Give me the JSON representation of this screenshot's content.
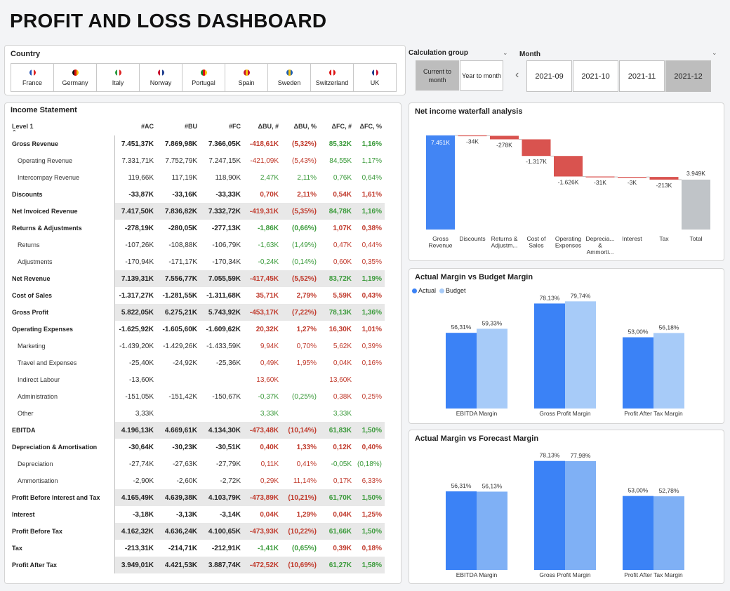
{
  "title": "PROFIT AND LOSS DASHBOARD",
  "country": {
    "label": "Country",
    "items": [
      {
        "name": "France",
        "flag": [
          "#1f4fb5",
          "#ffffff",
          "#d22"
        ]
      },
      {
        "name": "Germany",
        "flag": [
          "#111111",
          "#d11",
          "#f4c20d"
        ]
      },
      {
        "name": "Italy",
        "flag": [
          "#2a9a3f",
          "#ffffff",
          "#d22"
        ]
      },
      {
        "name": "Norway",
        "flag": [
          "#c8102e",
          "#ffffff",
          "#1b3a8c"
        ]
      },
      {
        "name": "Portugal",
        "flag": [
          "#1a8a2a",
          "#d11",
          "#f4c20d"
        ]
      },
      {
        "name": "Spain",
        "flag": [
          "#c8102e",
          "#f4c20d",
          "#c8102e"
        ]
      },
      {
        "name": "Sweden",
        "flag": [
          "#1f5fb5",
          "#f4c20d",
          "#1f5fb5"
        ]
      },
      {
        "name": "Switzerland",
        "flag": [
          "#d11",
          "#ffffff",
          "#d11"
        ]
      },
      {
        "name": "UK",
        "flag": [
          "#1b3a8c",
          "#ffffff",
          "#c8102e"
        ]
      }
    ]
  },
  "calc_group": {
    "label": "Calculation group",
    "options": [
      {
        "label": "Current to month",
        "selected": true
      },
      {
        "label": "Year to month",
        "selected": false
      }
    ]
  },
  "month": {
    "label": "Month",
    "options": [
      {
        "label": "2021-09",
        "selected": false
      },
      {
        "label": "2021-10",
        "selected": false
      },
      {
        "label": "2021-11",
        "selected": false
      },
      {
        "label": "2021-12",
        "selected": true
      }
    ]
  },
  "income": {
    "title": "Income Statement",
    "headers": [
      "Level 1",
      "#AC",
      "#BU",
      "#FC",
      "ΔBU, #",
      "ΔBU, %",
      "ΔFC, #",
      "ΔFC, %"
    ],
    "rows": [
      {
        "label": "Gross Revenue",
        "bold": true,
        "shade": false,
        "ac": "7.451,37K",
        "bu": "7.869,98K",
        "fc": "7.366,05K",
        "dbu": "-418,61K",
        "dbup": "(5,32%)",
        "dfc": "85,32K",
        "dfcp": "1,16%",
        "c": [
          "r",
          "r",
          "g",
          "g"
        ]
      },
      {
        "label": "Operating Revenue",
        "bold": false,
        "shade": false,
        "ac": "7.331,71K",
        "bu": "7.752,79K",
        "fc": "7.247,15K",
        "dbu": "-421,09K",
        "dbup": "(5,43%)",
        "dfc": "84,55K",
        "dfcp": "1,17%",
        "c": [
          "r",
          "r",
          "g",
          "g"
        ]
      },
      {
        "label": "Intercompay Revenue",
        "bold": false,
        "shade": false,
        "ac": "119,66K",
        "bu": "117,19K",
        "fc": "118,90K",
        "dbu": "2,47K",
        "dbup": "2,11%",
        "dfc": "0,76K",
        "dfcp": "0,64%",
        "c": [
          "g",
          "g",
          "g",
          "g"
        ]
      },
      {
        "label": "Discounts",
        "bold": true,
        "shade": false,
        "ac": "-33,87K",
        "bu": "-33,16K",
        "fc": "-33,33K",
        "dbu": "0,70K",
        "dbup": "2,11%",
        "dfc": "0,54K",
        "dfcp": "1,61%",
        "c": [
          "r",
          "r",
          "r",
          "r"
        ]
      },
      {
        "label": "Net Invoiced Revenue",
        "bold": true,
        "shade": true,
        "ac": "7.417,50K",
        "bu": "7.836,82K",
        "fc": "7.332,72K",
        "dbu": "-419,31K",
        "dbup": "(5,35%)",
        "dfc": "84,78K",
        "dfcp": "1,16%",
        "c": [
          "r",
          "r",
          "g",
          "g"
        ]
      },
      {
        "label": "Returns & Adjustments",
        "bold": true,
        "shade": false,
        "ac": "-278,19K",
        "bu": "-280,05K",
        "fc": "-277,13K",
        "dbu": "-1,86K",
        "dbup": "(0,66%)",
        "dfc": "1,07K",
        "dfcp": "0,38%",
        "c": [
          "g",
          "g",
          "r",
          "r"
        ]
      },
      {
        "label": "Returns",
        "bold": false,
        "shade": false,
        "ac": "-107,26K",
        "bu": "-108,88K",
        "fc": "-106,79K",
        "dbu": "-1,63K",
        "dbup": "(1,49%)",
        "dfc": "0,47K",
        "dfcp": "0,44%",
        "c": [
          "g",
          "g",
          "r",
          "r"
        ]
      },
      {
        "label": "Adjustments",
        "bold": false,
        "shade": false,
        "ac": "-170,94K",
        "bu": "-171,17K",
        "fc": "-170,34K",
        "dbu": "-0,24K",
        "dbup": "(0,14%)",
        "dfc": "0,60K",
        "dfcp": "0,35%",
        "c": [
          "g",
          "g",
          "r",
          "r"
        ]
      },
      {
        "label": "Net Revenue",
        "bold": true,
        "shade": true,
        "ac": "7.139,31K",
        "bu": "7.556,77K",
        "fc": "7.055,59K",
        "dbu": "-417,45K",
        "dbup": "(5,52%)",
        "dfc": "83,72K",
        "dfcp": "1,19%",
        "c": [
          "r",
          "r",
          "g",
          "g"
        ]
      },
      {
        "label": "Cost of Sales",
        "bold": true,
        "shade": false,
        "ac": "-1.317,27K",
        "bu": "-1.281,55K",
        "fc": "-1.311,68K",
        "dbu": "35,71K",
        "dbup": "2,79%",
        "dfc": "5,59K",
        "dfcp": "0,43%",
        "c": [
          "r",
          "r",
          "r",
          "r"
        ]
      },
      {
        "label": "Gross Profit",
        "bold": true,
        "shade": true,
        "ac": "5.822,05K",
        "bu": "6.275,21K",
        "fc": "5.743,92K",
        "dbu": "-453,17K",
        "dbup": "(7,22%)",
        "dfc": "78,13K",
        "dfcp": "1,36%",
        "c": [
          "r",
          "r",
          "g",
          "g"
        ]
      },
      {
        "label": "Operating Expenses",
        "bold": true,
        "shade": false,
        "ac": "-1.625,92K",
        "bu": "-1.605,60K",
        "fc": "-1.609,62K",
        "dbu": "20,32K",
        "dbup": "1,27%",
        "dfc": "16,30K",
        "dfcp": "1,01%",
        "c": [
          "r",
          "r",
          "r",
          "r"
        ]
      },
      {
        "label": "Marketing",
        "bold": false,
        "shade": false,
        "ac": "-1.439,20K",
        "bu": "-1.429,26K",
        "fc": "-1.433,59K",
        "dbu": "9,94K",
        "dbup": "0,70%",
        "dfc": "5,62K",
        "dfcp": "0,39%",
        "c": [
          "r",
          "r",
          "r",
          "r"
        ]
      },
      {
        "label": "Travel and Expenses",
        "bold": false,
        "shade": false,
        "ac": "-25,40K",
        "bu": "-24,92K",
        "fc": "-25,36K",
        "dbu": "0,49K",
        "dbup": "1,95%",
        "dfc": "0,04K",
        "dfcp": "0,16%",
        "c": [
          "r",
          "r",
          "r",
          "r"
        ]
      },
      {
        "label": "Indirect Labour",
        "bold": false,
        "shade": false,
        "ac": "-13,60K",
        "bu": "",
        "fc": "",
        "dbu": "13,60K",
        "dbup": "",
        "dfc": "13,60K",
        "dfcp": "",
        "c": [
          "r",
          "r",
          "r",
          "r"
        ]
      },
      {
        "label": "Administration",
        "bold": false,
        "shade": false,
        "ac": "-151,05K",
        "bu": "-151,42K",
        "fc": "-150,67K",
        "dbu": "-0,37K",
        "dbup": "(0,25%)",
        "dfc": "0,38K",
        "dfcp": "0,25%",
        "c": [
          "g",
          "g",
          "r",
          "r"
        ]
      },
      {
        "label": "Other",
        "bold": false,
        "shade": false,
        "ac": "3,33K",
        "bu": "",
        "fc": "",
        "dbu": "3,33K",
        "dbup": "",
        "dfc": "3,33K",
        "dfcp": "",
        "c": [
          "g",
          "g",
          "g",
          "g"
        ]
      },
      {
        "label": "EBITDA",
        "bold": true,
        "shade": true,
        "ac": "4.196,13K",
        "bu": "4.669,61K",
        "fc": "4.134,30K",
        "dbu": "-473,48K",
        "dbup": "(10,14%)",
        "dfc": "61,83K",
        "dfcp": "1,50%",
        "c": [
          "r",
          "r",
          "g",
          "g"
        ]
      },
      {
        "label": "Depreciation & Amortisation",
        "bold": true,
        "shade": false,
        "ac": "-30,64K",
        "bu": "-30,23K",
        "fc": "-30,51K",
        "dbu": "0,40K",
        "dbup": "1,33%",
        "dfc": "0,12K",
        "dfcp": "0,40%",
        "c": [
          "r",
          "r",
          "r",
          "r"
        ]
      },
      {
        "label": "Depreciation",
        "bold": false,
        "shade": false,
        "ac": "-27,74K",
        "bu": "-27,63K",
        "fc": "-27,79K",
        "dbu": "0,11K",
        "dbup": "0,41%",
        "dfc": "-0,05K",
        "dfcp": "(0,18%)",
        "c": [
          "r",
          "r",
          "g",
          "g"
        ]
      },
      {
        "label": "Ammortisation",
        "bold": false,
        "shade": false,
        "ac": "-2,90K",
        "bu": "-2,60K",
        "fc": "-2,72K",
        "dbu": "0,29K",
        "dbup": "11,14%",
        "dfc": "0,17K",
        "dfcp": "6,33%",
        "c": [
          "r",
          "r",
          "r",
          "r"
        ]
      },
      {
        "label": "Profit Before Interest and Tax",
        "bold": true,
        "shade": true,
        "ac": "4.165,49K",
        "bu": "4.639,38K",
        "fc": "4.103,79K",
        "dbu": "-473,89K",
        "dbup": "(10,21%)",
        "dfc": "61,70K",
        "dfcp": "1,50%",
        "c": [
          "r",
          "r",
          "g",
          "g"
        ]
      },
      {
        "label": "Interest",
        "bold": true,
        "shade": false,
        "ac": "-3,18K",
        "bu": "-3,13K",
        "fc": "-3,14K",
        "dbu": "0,04K",
        "dbup": "1,29%",
        "dfc": "0,04K",
        "dfcp": "1,25%",
        "c": [
          "r",
          "r",
          "r",
          "r"
        ]
      },
      {
        "label": "Profit Before Tax",
        "bold": true,
        "shade": true,
        "ac": "4.162,32K",
        "bu": "4.636,24K",
        "fc": "4.100,65K",
        "dbu": "-473,93K",
        "dbup": "(10,22%)",
        "dfc": "61,66K",
        "dfcp": "1,50%",
        "c": [
          "r",
          "r",
          "g",
          "g"
        ]
      },
      {
        "label": "Tax",
        "bold": true,
        "shade": false,
        "ac": "-213,31K",
        "bu": "-214,71K",
        "fc": "-212,91K",
        "dbu": "-1,41K",
        "dbup": "(0,65%)",
        "dfc": "0,39K",
        "dfcp": "0,18%",
        "c": [
          "g",
          "g",
          "r",
          "r"
        ]
      },
      {
        "label": "Profit After Tax",
        "bold": true,
        "shade": true,
        "ac": "3.949,01K",
        "bu": "4.421,53K",
        "fc": "3.887,74K",
        "dbu": "-472,52K",
        "dbup": "(10,69%)",
        "dfc": "61,27K",
        "dfcp": "1,58%",
        "c": [
          "r",
          "r",
          "g",
          "g"
        ]
      }
    ]
  },
  "waterfall": {
    "title": "Net income waterfall analysis",
    "colors": {
      "increase": "#4285f4",
      "decrease": "#d9534f",
      "total": "#c0c4c8"
    },
    "steps": [
      {
        "label": [
          "Gross",
          "Revenue"
        ],
        "value": 7451,
        "type": "increase",
        "text": "7.451K"
      },
      {
        "label": [
          "Discounts"
        ],
        "value": -34,
        "type": "decrease",
        "text": "-34K"
      },
      {
        "label": [
          "Returns &",
          "Adjustm..."
        ],
        "value": -278,
        "type": "decrease",
        "text": "-278K"
      },
      {
        "label": [
          "Cost of",
          "Sales"
        ],
        "value": -1317,
        "type": "decrease",
        "text": "-1.317K"
      },
      {
        "label": [
          "Operating",
          "Expenses"
        ],
        "value": -1626,
        "type": "decrease",
        "text": "-1.626K"
      },
      {
        "label": [
          "Deprecia...",
          "&",
          "Ammorti..."
        ],
        "value": -31,
        "type": "decrease",
        "text": "-31K"
      },
      {
        "label": [
          "Interest"
        ],
        "value": -3,
        "type": "decrease",
        "text": "-3K"
      },
      {
        "label": [
          "Tax"
        ],
        "value": -213,
        "type": "decrease",
        "text": "-213K"
      },
      {
        "label": [
          "Total"
        ],
        "value": 3949,
        "type": "total",
        "text": "3.949K"
      }
    ]
  },
  "margin_bu": {
    "title": "Actual Margin vs Budget Margin",
    "legend": [
      {
        "name": "Actual",
        "color": "#3b82f6"
      },
      {
        "name": "Budget",
        "color": "#a7cbf8"
      }
    ],
    "categories": [
      "EBITDA Margin",
      "Gross Profit Margin",
      "Profit After Tax Margin"
    ],
    "actual": [
      56.31,
      78.13,
      53.0
    ],
    "compare": [
      59.33,
      79.74,
      56.18
    ],
    "actual_text": [
      "56,31%",
      "78,13%",
      "53,00%"
    ],
    "compare_text": [
      "59,33%",
      "79,74%",
      "56,18%"
    ],
    "compare_color": "#a7cbf8"
  },
  "margin_fc": {
    "title": "Actual Margin vs Forecast Margin",
    "categories": [
      "EBITDA Margin",
      "Gross Profit Margin",
      "Profit After Tax Margin"
    ],
    "actual": [
      56.31,
      78.13,
      53.0
    ],
    "compare": [
      56.13,
      77.98,
      52.78
    ],
    "actual_text": [
      "56,31%",
      "78,13%",
      "53,00%"
    ],
    "compare_text": [
      "56,13%",
      "77,98%",
      "52,78%"
    ],
    "compare_color": "#7fb0f5"
  },
  "chart_data": [
    {
      "type": "bar",
      "title": "Net income waterfall analysis",
      "categories": [
        "Gross Revenue",
        "Discounts",
        "Returns & Adjustm...",
        "Cost of Sales",
        "Operating Expenses",
        "Deprecia... & Ammorti...",
        "Interest",
        "Tax",
        "Total"
      ],
      "values": [
        7451,
        -34,
        -278,
        -1317,
        -1626,
        -31,
        -3,
        -213,
        3949
      ]
    },
    {
      "type": "bar",
      "title": "Actual Margin vs Budget Margin",
      "categories": [
        "EBITDA Margin",
        "Gross Profit Margin",
        "Profit After Tax Margin"
      ],
      "series": [
        {
          "name": "Actual",
          "values": [
            56.31,
            78.13,
            53.0
          ]
        },
        {
          "name": "Budget",
          "values": [
            59.33,
            79.74,
            56.18
          ]
        }
      ]
    },
    {
      "type": "bar",
      "title": "Actual Margin vs Forecast Margin",
      "categories": [
        "EBITDA Margin",
        "Gross Profit Margin",
        "Profit After Tax Margin"
      ],
      "series": [
        {
          "values": [
            56.31,
            78.13,
            53.0
          ]
        },
        {
          "values": [
            56.13,
            77.98,
            52.78
          ]
        }
      ]
    }
  ]
}
